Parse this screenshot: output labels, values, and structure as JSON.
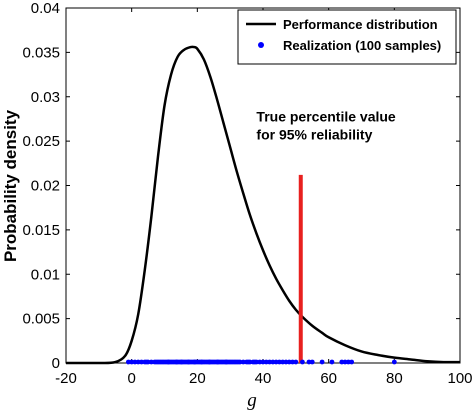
{
  "chart_data": {
    "type": "line",
    "xlabel": "g",
    "ylabel": "Probability density",
    "xlim": [
      -20,
      100
    ],
    "ylim": [
      0,
      0.04
    ],
    "xticks": [
      -20,
      0,
      20,
      40,
      60,
      80,
      100
    ],
    "xtick_labels": [
      "-20",
      "0",
      "20",
      "40",
      "60",
      "80",
      "100"
    ],
    "yticks": [
      0,
      0.005,
      0.01,
      0.015,
      0.02,
      0.025,
      0.03,
      0.035,
      0.04
    ],
    "ytick_labels": [
      "0",
      "0.005",
      "0.01",
      "0.015",
      "0.02",
      "0.025",
      "0.03",
      "0.035",
      "0.04"
    ],
    "grid": false,
    "legend_position": "top-right",
    "series": [
      {
        "name": "Performance distribution",
        "kind": "line",
        "color": "#000000",
        "x": [
          -20,
          -10,
          -5,
          -2,
          0,
          2,
          4,
          6,
          8,
          10,
          12,
          14,
          16,
          18,
          19,
          20,
          22,
          24,
          26,
          28,
          30,
          32,
          34,
          36,
          38,
          40,
          42,
          44,
          46,
          48,
          50,
          52,
          55,
          58,
          60,
          65,
          70,
          75,
          80,
          85,
          90,
          95,
          100
        ],
        "y": [
          0,
          0,
          0.0001,
          0.0008,
          0.0025,
          0.0055,
          0.0105,
          0.0165,
          0.0232,
          0.029,
          0.0325,
          0.0345,
          0.0353,
          0.0356,
          0.0356,
          0.0354,
          0.0342,
          0.0322,
          0.0297,
          0.027,
          0.0243,
          0.0216,
          0.0191,
          0.0167,
          0.0146,
          0.0127,
          0.011,
          0.0095,
          0.0082,
          0.007,
          0.006,
          0.0052,
          0.0042,
          0.0034,
          0.0029,
          0.002,
          0.0013,
          0.0009,
          0.0006,
          0.0004,
          0.0002,
          0.0001,
          0.0001
        ]
      },
      {
        "name": "Realization (100 samples)",
        "kind": "scatter",
        "color": "#0000ff",
        "x": [
          -1,
          0,
          1,
          2,
          3,
          4,
          4.5,
          5,
          6,
          7,
          7.5,
          8,
          9,
          9.5,
          10,
          10.5,
          11,
          11.5,
          12,
          12.5,
          13,
          13.5,
          14,
          14.5,
          15,
          15.5,
          16,
          16.5,
          17,
          17.5,
          18,
          18.5,
          19,
          19.5,
          20,
          20.5,
          21,
          21.5,
          22,
          22.5,
          23,
          23.5,
          24,
          24.5,
          25,
          25.5,
          26,
          26.5,
          27,
          27.5,
          28,
          28.5,
          29,
          29.5,
          30,
          30.5,
          31,
          31.5,
          32,
          32.5,
          33,
          34,
          35,
          35.5,
          36,
          37,
          37.5,
          38,
          39,
          40,
          41,
          42,
          43,
          44,
          45,
          46,
          47,
          48,
          49,
          50,
          52,
          54,
          55,
          58,
          61,
          64,
          65,
          66,
          67,
          80,
          8.5,
          11.2,
          13.7,
          15.2,
          17.3,
          19.2,
          21.3,
          23.7,
          26.2,
          28.8
        ],
        "y": [
          0,
          0,
          0,
          0,
          0,
          0,
          0,
          0,
          0,
          0,
          0,
          0,
          0,
          0,
          0,
          0,
          0,
          0,
          0,
          0,
          0,
          0,
          0,
          0,
          0,
          0,
          0,
          0,
          0,
          0,
          0,
          0,
          0,
          0,
          0,
          0,
          0,
          0,
          0,
          0,
          0,
          0,
          0,
          0,
          0,
          0,
          0,
          0,
          0,
          0,
          0,
          0,
          0,
          0,
          0,
          0,
          0,
          0,
          0,
          0,
          0,
          0,
          0,
          0,
          0,
          0,
          0,
          0,
          0,
          0,
          0,
          0,
          0,
          0,
          0,
          0,
          0,
          0,
          0,
          0,
          0,
          0,
          0,
          0,
          0,
          0,
          0,
          0,
          0,
          0,
          0,
          0,
          0,
          0,
          0,
          0,
          0,
          0,
          0,
          0
        ]
      }
    ],
    "marker_line": {
      "x": 51.5,
      "y": [
        0,
        0.0212
      ],
      "color": "#e8201f"
    },
    "annotation": {
      "lines": [
        "True percentile value",
        "for 95% reliability"
      ],
      "x": 38,
      "y": 0.0272
    }
  }
}
